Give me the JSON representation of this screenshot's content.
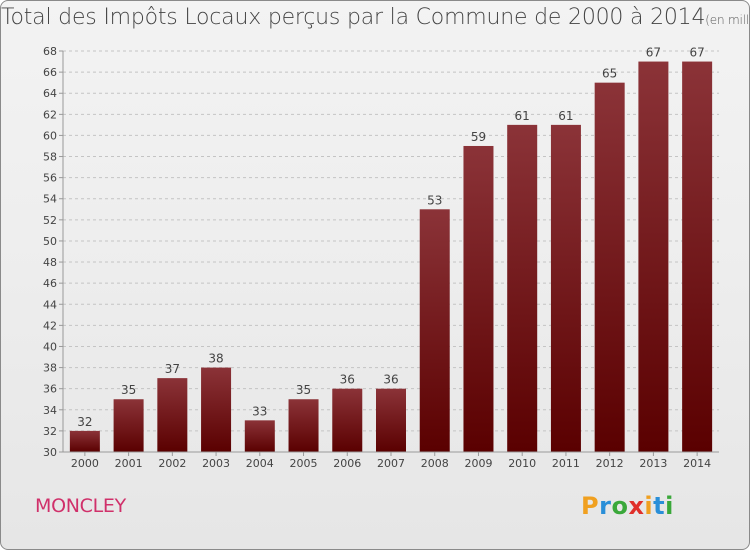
{
  "header": {
    "title": "Total des Impôts Locaux perçus par la Commune de 2000 à 2014",
    "unit": "(en milliers d'€)"
  },
  "footer": {
    "commune": "MONCLEY",
    "logo_letters": [
      "P",
      "r",
      "o",
      "x",
      "i",
      "t",
      "i"
    ],
    "logo_colors": [
      "#f0a020",
      "#2a8fd8",
      "#3aa83a",
      "#e0302a",
      "#f0a020",
      "#2a8fd8",
      "#3aa83a"
    ]
  },
  "chart_data": {
    "type": "bar",
    "title": "Total des Impôts Locaux perçus par la Commune de 2000 à 2014",
    "unit": "(en milliers d'€)",
    "categories": [
      "2000",
      "2001",
      "2002",
      "2003",
      "2004",
      "2005",
      "2006",
      "2007",
      "2008",
      "2009",
      "2010",
      "2011",
      "2012",
      "2013",
      "2014"
    ],
    "values": [
      32,
      35,
      37,
      38,
      33,
      35,
      36,
      36,
      53,
      59,
      61,
      61,
      65,
      67,
      67
    ],
    "ylim": [
      30,
      68
    ],
    "ytick_step": 2,
    "grid": "horizontal dashed",
    "bar_color_top": "#8b3338",
    "bar_color_bottom": "#5a0000"
  }
}
